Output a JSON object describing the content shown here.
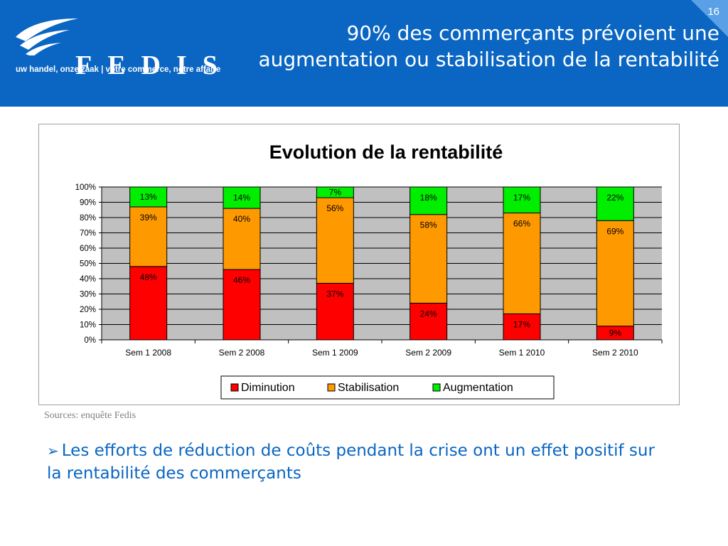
{
  "header": {
    "logo_text": "FEDIS",
    "tagline": "uw handel, onze zaak  |  votre commerce, notre affaire",
    "page_number": "16",
    "title": "90% des commerçants prévoient une augmentation ou stabilisation de la rentabilité",
    "colors": {
      "background": "#0a66c2",
      "text": "#ffffff"
    }
  },
  "source": "Sources: enquête Fedis",
  "bullet": {
    "icon": "arrow-bullet-icon",
    "text": "Les efforts de réduction de coûts pendant la crise ont un effet positif sur la rentabilité des commerçants"
  },
  "chart_data": {
    "type": "bar",
    "stacked": true,
    "title": "Evolution de la rentabilité",
    "categories": [
      "Sem 1 2008",
      "Sem 2 2008",
      "Sem 1 2009",
      "Sem 2 2009",
      "Sem 1 2010",
      "Sem 2 2010"
    ],
    "series": [
      {
        "name": "Diminution",
        "color": "#ff0000",
        "values": [
          48,
          46,
          37,
          24,
          17,
          9
        ]
      },
      {
        "name": "Stabilisation",
        "color": "#ff9900",
        "values": [
          39,
          40,
          56,
          58,
          66,
          69
        ]
      },
      {
        "name": "Augmentation",
        "color": "#00ee00",
        "values": [
          13,
          14,
          7,
          18,
          17,
          22
        ]
      }
    ],
    "data_labels": [
      "48%",
      "46%",
      "37%",
      "24%",
      "17%",
      "9%",
      "39%",
      "40%",
      "56%",
      "58%",
      "66%",
      "69%",
      "13%",
      "14%",
      "7%",
      "18%",
      "17%",
      "22%"
    ],
    "ylim": [
      0,
      100
    ],
    "yticks": [
      "0%",
      "10%",
      "20%",
      "30%",
      "40%",
      "50%",
      "60%",
      "70%",
      "80%",
      "90%",
      "100%"
    ],
    "grid": true,
    "plot_background": "#c0c0c0",
    "legend": "bottom"
  }
}
